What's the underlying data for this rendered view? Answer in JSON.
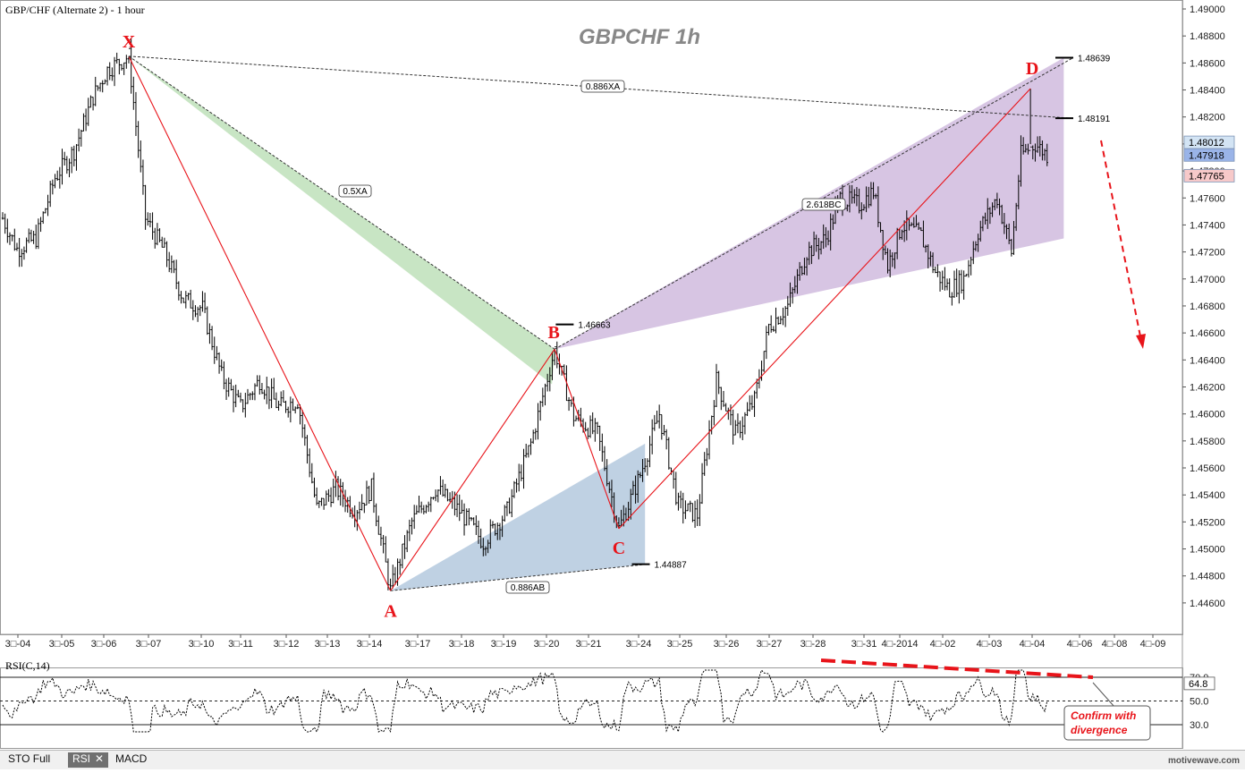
{
  "header": {
    "title": "GBP/CHF (Alternate 2) - 1 hour",
    "watermark": "GBPCHF  1h"
  },
  "colors": {
    "pattern_line": "#e8141a",
    "label_red": "#e8141a",
    "green_fill": "#b5dcb0",
    "purple_fill": "#c9b1d9",
    "blue_fill": "#a9c2d9",
    "bars": "#000000",
    "rsi_line": "#000000"
  },
  "chart_data": {
    "type": "line",
    "title": "GBPCHF  1h",
    "xlabel": "",
    "ylabel": "",
    "ylim": [
      1.4448,
      1.4902
    ],
    "grid": false,
    "y_ticks": [
      "1.49000",
      "1.48800",
      "1.48600",
      "1.48400",
      "1.48200",
      "1.48000",
      "1.47800",
      "1.47600",
      "1.47400",
      "1.47200",
      "1.47000",
      "1.46800",
      "1.46600",
      "1.46400",
      "1.46200",
      "1.46000",
      "1.45800",
      "1.45600",
      "1.45400",
      "1.45200",
      "1.45000",
      "1.44800",
      "1.44600"
    ],
    "x_ticks": [
      "3\u0000-04",
      "3\u0000-05",
      "3\u0000-06",
      "3\u0000-07",
      "3\u0000-10",
      "3\u0000-11",
      "3\u0000-12",
      "3\u0000-13",
      "3\u0000-14",
      "3\u0000-17",
      "3\u0000-18",
      "3\u0000-19",
      "3\u0000-20",
      "3\u0000-21",
      "3\u0000-24",
      "3\u0000-25",
      "3\u0000-26",
      "3\u0000-27",
      "3\u0000-28",
      "3\u0000-31",
      "4\u0000-2014",
      "4\u0000-02",
      "4\u0000-03",
      "4\u0000-04",
      "4\u0000-06",
      "4\u0000-08",
      "4\u0000-09"
    ],
    "price_labels": [
      {
        "text": "1.48012",
        "value": 1.48012,
        "bg": "#d3e4f4"
      },
      {
        "text": "1.47918",
        "value": 1.47918,
        "bg": "#9ab4e8"
      },
      {
        "text": "1.47765",
        "value": 1.47765,
        "bg": "#f7c9c9"
      }
    ],
    "pivots": [
      {
        "label": "X",
        "bar": 53,
        "value": 1.4865
      },
      {
        "label": "A",
        "bar": 163,
        "value": 1.4469
      },
      {
        "label": "B",
        "bar": 232,
        "value": 1.4648
      },
      {
        "label": "C",
        "bar": 259,
        "value": 1.4515
      },
      {
        "label": "D",
        "bar": 432,
        "value": 1.4841
      }
    ],
    "levels": [
      {
        "text": "1.48639",
        "value": 1.48639
      },
      {
        "text": "1.48191",
        "value": 1.48191
      },
      {
        "text": "1.46663",
        "value": 1.46663
      },
      {
        "text": "1.44887",
        "value": 1.44887
      }
    ],
    "ratios": [
      "0.886XA",
      "0.5XA",
      "2.618BC",
      "0.886AB"
    ],
    "rsi": {
      "title": "RSI(C,14)",
      "levels": [
        "70.0",
        "50.0",
        "30.0"
      ],
      "current": "64.8"
    },
    "annotation": "Confirm with divergence"
  },
  "tabs": [
    {
      "label": "STO Full",
      "active": false
    },
    {
      "label": "RSI",
      "active": true
    },
    {
      "label": "MACD",
      "active": false
    }
  ],
  "footer": "motivewave.com"
}
